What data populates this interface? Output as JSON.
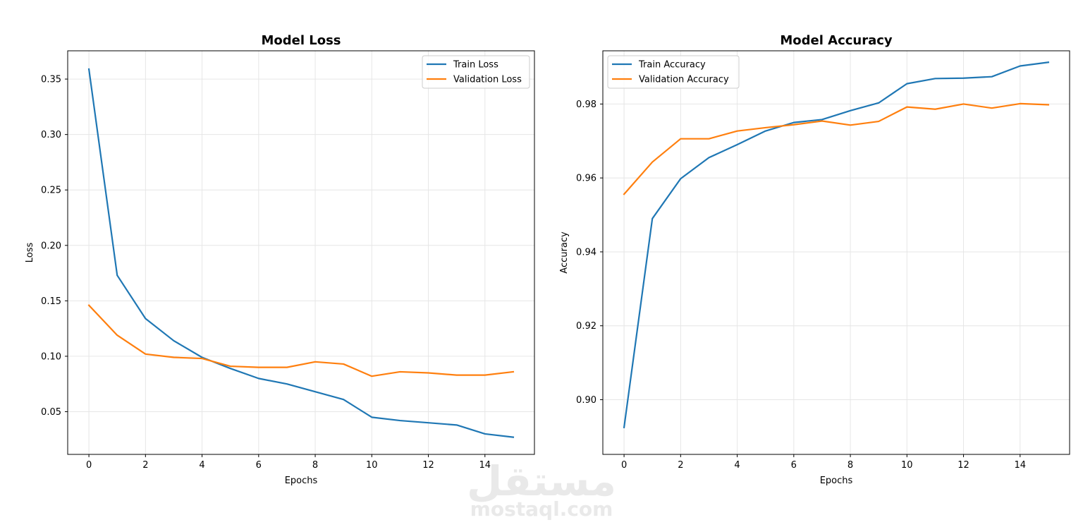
{
  "chart_data": [
    {
      "type": "line",
      "title": "Model Loss",
      "xlabel": "Epochs",
      "ylabel": "Loss",
      "xlim": [
        -0.75,
        15.75
      ],
      "ylim": [
        0.0115,
        0.3755
      ],
      "x_ticks": [
        0,
        2,
        4,
        6,
        8,
        10,
        12,
        14
      ],
      "y_ticks": [
        0.05,
        0.1,
        0.15,
        0.2,
        0.25,
        0.3,
        0.35
      ],
      "y_tick_labels": [
        "0.05",
        "0.10",
        "0.15",
        "0.20",
        "0.25",
        "0.30",
        "0.35"
      ],
      "grid": true,
      "legend_position": "top-right",
      "x": [
        0,
        1,
        2,
        3,
        4,
        5,
        6,
        7,
        8,
        9,
        10,
        11,
        12,
        13,
        14,
        15
      ],
      "series": [
        {
          "name": "Train Loss",
          "color": "#1f77b4",
          "values": [
            0.359,
            0.173,
            0.134,
            0.114,
            0.099,
            0.089,
            0.08,
            0.075,
            0.068,
            0.061,
            0.045,
            0.042,
            0.04,
            0.038,
            0.03,
            0.027
          ]
        },
        {
          "name": "Validation Loss",
          "color": "#ff7f0e",
          "values": [
            0.146,
            0.119,
            0.102,
            0.099,
            0.098,
            0.091,
            0.09,
            0.09,
            0.095,
            0.093,
            0.082,
            0.086,
            0.085,
            0.083,
            0.083,
            0.086
          ]
        }
      ]
    },
    {
      "type": "line",
      "title": "Model Accuracy",
      "xlabel": "Epochs",
      "ylabel": "Accuracy",
      "xlim": [
        -0.75,
        15.75
      ],
      "ylim": [
        0.8852,
        0.9944
      ],
      "x_ticks": [
        0,
        2,
        4,
        6,
        8,
        10,
        12,
        14
      ],
      "y_ticks": [
        0.9,
        0.92,
        0.94,
        0.96,
        0.98
      ],
      "y_tick_labels": [
        "0.90",
        "0.92",
        "0.94",
        "0.96",
        "0.98"
      ],
      "grid": true,
      "legend_position": "top-left",
      "x": [
        0,
        1,
        2,
        3,
        4,
        5,
        6,
        7,
        8,
        9,
        10,
        11,
        12,
        13,
        14,
        15
      ],
      "series": [
        {
          "name": "Train Accuracy",
          "color": "#1f77b4",
          "values": [
            0.8925,
            0.949,
            0.9598,
            0.9655,
            0.969,
            0.9727,
            0.975,
            0.9758,
            0.9782,
            0.9803,
            0.9855,
            0.9869,
            0.987,
            0.9874,
            0.9903,
            0.9913
          ]
        },
        {
          "name": "Validation Accuracy",
          "color": "#ff7f0e",
          "values": [
            0.9556,
            0.9643,
            0.9706,
            0.9706,
            0.9727,
            0.9736,
            0.9744,
            0.9754,
            0.9743,
            0.9753,
            0.9792,
            0.9786,
            0.98,
            0.9789,
            0.9801,
            0.9798
          ]
        }
      ]
    }
  ],
  "watermark": {
    "arabic": "مستقل",
    "latin": "mostaql.com"
  }
}
